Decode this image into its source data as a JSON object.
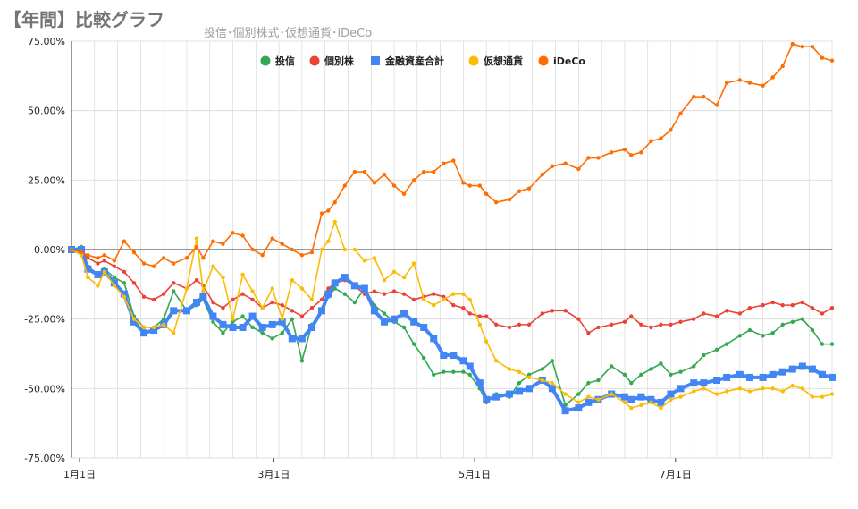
{
  "title": "【年間】比較グラフ",
  "subtitle": "投信･個別株式･仮想通貨･iDeCo",
  "colors": {
    "toushin": "#34a853",
    "kobetsu": "#ea4335",
    "kinyu": "#4285f4",
    "kasou": "#fbbc04",
    "ideco": "#ff6d01",
    "grid": "#d9d9d9",
    "zero": "#333333"
  },
  "chart_data": {
    "type": "line",
    "y_unit": "%",
    "ylim": [
      -75,
      75
    ],
    "y_ticks": [
      75,
      50,
      25,
      0,
      -25,
      -50,
      -75
    ],
    "y_tick_labels": [
      "75.00%",
      "50.00%",
      "25.00%",
      "0.00%",
      "-25.00%",
      "-50.00%",
      "-75.00%"
    ],
    "xlim": [
      0,
      231
    ],
    "x_ticks": [
      0,
      59,
      120,
      181
    ],
    "x_tick_labels": [
      "1月1日",
      "3月1日",
      "5月1日",
      "7月1日"
    ],
    "grid": true,
    "legend_position": "top",
    "series": [
      {
        "name": "投信",
        "key": "toushin",
        "marker": "circle",
        "x": [
          0,
          3,
          5,
          8,
          10,
          13,
          16,
          19,
          22,
          25,
          28,
          31,
          35,
          38,
          40,
          43,
          46,
          49,
          52,
          55,
          58,
          61,
          64,
          67,
          70,
          73,
          76,
          78,
          80,
          83,
          86,
          89,
          92,
          95,
          98,
          101,
          104,
          107,
          110,
          113,
          116,
          119,
          121,
          124,
          126,
          129,
          133,
          136,
          139,
          143,
          146,
          150,
          154,
          157,
          160,
          164,
          168,
          170,
          173,
          176,
          179,
          182,
          185,
          189,
          192,
          196,
          199,
          203,
          206,
          210,
          213,
          216,
          219,
          222,
          225,
          228,
          231
        ],
        "y": [
          0,
          1,
          -6,
          -9,
          -7,
          -10,
          -12,
          -24,
          -28,
          -28,
          -25,
          -15,
          -22,
          -20,
          -18,
          -26,
          -30,
          -26,
          -24,
          -28,
          -30,
          -32,
          -30,
          -25,
          -40,
          -27,
          -22,
          -17,
          -14,
          -16,
          -19,
          -14,
          -20,
          -23,
          -26,
          -28,
          -34,
          -39,
          -45,
          -44,
          -44,
          -44,
          -45,
          -50,
          -55,
          -52,
          -53,
          -48,
          -45,
          -43,
          -40,
          -56,
          -52,
          -48,
          -47,
          -42,
          -45,
          -48,
          -45,
          -43,
          -41,
          -45,
          -44,
          -42,
          -38,
          -36,
          -34,
          -31,
          -29,
          -31,
          -30,
          -27,
          -26,
          -25,
          -29,
          -34,
          -34
        ]
      },
      {
        "name": "個別株",
        "key": "kobetsu",
        "marker": "circle",
        "x": [
          0,
          3,
          5,
          8,
          10,
          13,
          16,
          19,
          22,
          25,
          28,
          31,
          35,
          38,
          40,
          43,
          46,
          49,
          52,
          55,
          58,
          61,
          64,
          67,
          70,
          73,
          76,
          78,
          80,
          83,
          86,
          89,
          92,
          95,
          98,
          101,
          104,
          107,
          110,
          113,
          116,
          119,
          121,
          124,
          126,
          129,
          133,
          136,
          139,
          143,
          146,
          150,
          154,
          157,
          160,
          164,
          168,
          170,
          173,
          176,
          179,
          182,
          185,
          189,
          192,
          196,
          199,
          203,
          206,
          210,
          213,
          216,
          219,
          222,
          225,
          228,
          231
        ],
        "y": [
          0,
          -1,
          -3,
          -5,
          -4,
          -6,
          -8,
          -12,
          -17,
          -18,
          -16,
          -12,
          -14,
          -11,
          -13,
          -19,
          -21,
          -18,
          -16,
          -18,
          -21,
          -19,
          -20,
          -22,
          -24,
          -21,
          -18,
          -14,
          -12,
          -11,
          -13,
          -16,
          -15,
          -16,
          -15,
          -16,
          -18,
          -17,
          -16,
          -17,
          -20,
          -21,
          -23,
          -24,
          -24,
          -27,
          -28,
          -27,
          -27,
          -23,
          -22,
          -22,
          -25,
          -30,
          -28,
          -27,
          -26,
          -24,
          -27,
          -28,
          -27,
          -27,
          -26,
          -25,
          -23,
          -24,
          -22,
          -23,
          -21,
          -20,
          -19,
          -20,
          -20,
          -19,
          -21,
          -23,
          -21
        ]
      },
      {
        "name": "金融資産合計",
        "key": "kinyu",
        "marker": "square",
        "x": [
          0,
          3,
          5,
          8,
          10,
          13,
          16,
          19,
          22,
          25,
          28,
          31,
          35,
          38,
          40,
          43,
          46,
          49,
          52,
          55,
          58,
          61,
          64,
          67,
          70,
          73,
          76,
          78,
          80,
          83,
          86,
          89,
          92,
          95,
          98,
          101,
          104,
          107,
          110,
          113,
          116,
          119,
          121,
          124,
          126,
          129,
          133,
          136,
          139,
          143,
          146,
          150,
          154,
          157,
          160,
          164,
          168,
          170,
          173,
          176,
          179,
          182,
          185,
          189,
          192,
          196,
          199,
          203,
          206,
          210,
          213,
          216,
          219,
          222,
          225,
          228,
          231
        ],
        "y": [
          0,
          0,
          -7,
          -9,
          -8,
          -12,
          -16,
          -26,
          -30,
          -29,
          -27,
          -22,
          -22,
          -19,
          -17,
          -24,
          -27,
          -28,
          -28,
          -24,
          -28,
          -27,
          -26,
          -32,
          -32,
          -28,
          -22,
          -16,
          -12,
          -10,
          -13,
          -14,
          -22,
          -26,
          -25,
          -23,
          -26,
          -28,
          -32,
          -38,
          -38,
          -40,
          -42,
          -48,
          -54,
          -53,
          -52,
          -51,
          -50,
          -47,
          -50,
          -58,
          -57,
          -55,
          -54,
          -52,
          -53,
          -54,
          -53,
          -54,
          -55,
          -52,
          -50,
          -48,
          -48,
          -47,
          -46,
          -45,
          -46,
          -46,
          -45,
          -44,
          -43,
          -42,
          -43,
          -45,
          -46
        ]
      },
      {
        "name": "仮想通貨",
        "key": "kasou",
        "marker": "circle",
        "x": [
          0,
          3,
          5,
          8,
          10,
          13,
          16,
          19,
          22,
          25,
          28,
          31,
          35,
          38,
          40,
          43,
          46,
          49,
          52,
          55,
          58,
          61,
          64,
          67,
          70,
          73,
          76,
          78,
          80,
          83,
          86,
          89,
          92,
          95,
          98,
          101,
          104,
          107,
          110,
          113,
          116,
          119,
          121,
          124,
          126,
          129,
          133,
          136,
          139,
          143,
          146,
          150,
          154,
          157,
          160,
          164,
          168,
          170,
          173,
          176,
          179,
          182,
          185,
          189,
          192,
          196,
          199,
          203,
          206,
          210,
          213,
          216,
          219,
          222,
          225,
          228,
          231
        ],
        "y": [
          0,
          -2,
          -10,
          -13,
          -8,
          -13,
          -17,
          -25,
          -28,
          -28,
          -27,
          -30,
          -14,
          4,
          -15,
          -6,
          -10,
          -25,
          -9,
          -15,
          -21,
          -14,
          -25,
          -11,
          -14,
          -18,
          0,
          3,
          10,
          0,
          0,
          -4,
          -3,
          -11,
          -8,
          -10,
          -5,
          -18,
          -20,
          -18,
          -16,
          -16,
          -18,
          -27,
          -33,
          -40,
          -43,
          -44,
          -46,
          -47,
          -48,
          -52,
          -55,
          -53,
          -54,
          -52,
          -55,
          -57,
          -56,
          -55,
          -57,
          -54,
          -53,
          -51,
          -50,
          -52,
          -51,
          -50,
          -51,
          -50,
          -50,
          -51,
          -49,
          -50,
          -53,
          -53,
          -52
        ]
      },
      {
        "name": "iDeCo",
        "key": "ideco",
        "marker": "circle",
        "x": [
          0,
          3,
          5,
          8,
          10,
          13,
          16,
          19,
          22,
          25,
          28,
          31,
          35,
          38,
          40,
          43,
          46,
          49,
          52,
          55,
          58,
          61,
          64,
          67,
          70,
          73,
          76,
          78,
          80,
          83,
          86,
          89,
          92,
          95,
          98,
          101,
          104,
          107,
          110,
          113,
          116,
          119,
          121,
          124,
          126,
          129,
          133,
          136,
          139,
          143,
          146,
          150,
          154,
          157,
          160,
          164,
          168,
          170,
          173,
          176,
          179,
          182,
          185,
          189,
          192,
          196,
          199,
          203,
          206,
          210,
          213,
          216,
          219,
          222,
          225,
          228,
          231
        ],
        "y": [
          0,
          -1,
          -2,
          -3,
          -2,
          -4,
          3,
          -1,
          -5,
          -6,
          -3,
          -5,
          -3,
          1,
          -3,
          3,
          2,
          6,
          5,
          0,
          -2,
          4,
          2,
          0,
          -2,
          -1,
          13,
          14,
          17,
          23,
          28,
          28,
          24,
          27,
          23,
          20,
          25,
          28,
          28,
          31,
          32,
          24,
          23,
          23,
          20,
          17,
          18,
          21,
          22,
          27,
          30,
          31,
          29,
          33,
          33,
          35,
          36,
          34,
          35,
          39,
          40,
          43,
          49,
          55,
          55,
          52,
          60,
          61,
          60,
          59,
          62,
          66,
          74,
          73,
          73,
          69,
          68
        ]
      }
    ]
  }
}
